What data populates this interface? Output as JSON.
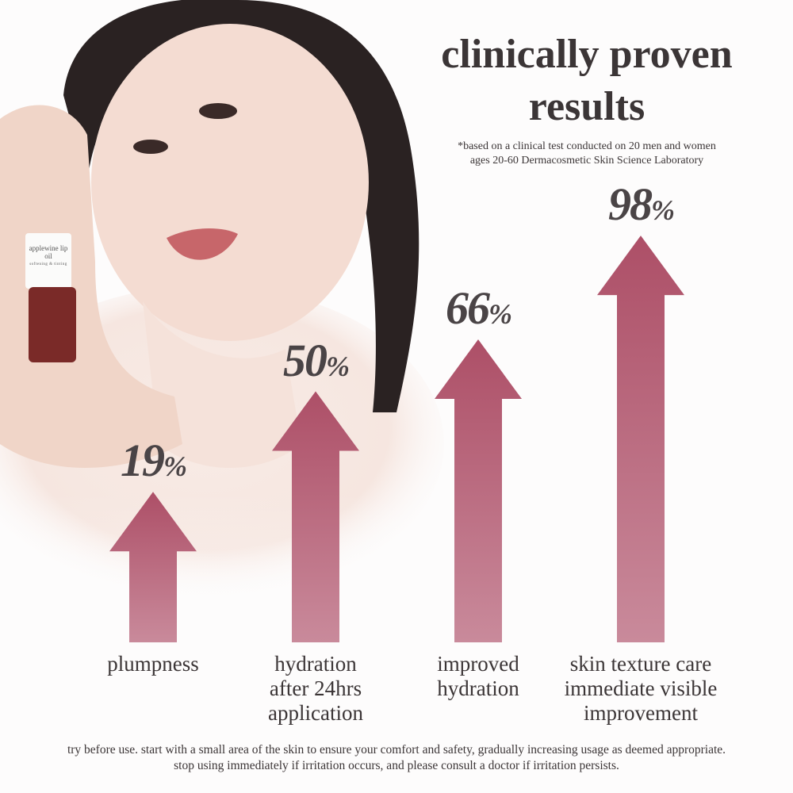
{
  "header": {
    "title_line1": "clinically proven",
    "title_line2": "results",
    "note_line1": "*based on a clinical test conducted on 20 men and women",
    "note_line2": "ages 20-60 Dermacosmetic Skin Science Laboratory"
  },
  "product_label": {
    "name": "applewine lip oil",
    "sub": "softening & tinting"
  },
  "chart_data": {
    "type": "bar",
    "style": "upward arrows",
    "categories": [
      "plumpness",
      "hydration\nafter 24hrs\napplication",
      "improved\nhydration",
      "skin texture care\nimmediate visible\nimprovement"
    ],
    "values": [
      19,
      50,
      66,
      98
    ],
    "value_labels": [
      "19",
      "50",
      "66",
      "98"
    ],
    "unit": "%",
    "colors": {
      "arrow_top": "#ad4f67",
      "arrow_bottom": "#c98a9b",
      "value_text": "#4a4446"
    }
  },
  "disclaimer": {
    "line1": "try before use. start with a small area of the skin to ensure your comfort and safety, gradually increasing usage as deemed appropriate.",
    "line2": "stop using immediately if irritation occurs, and please consult a doctor if irritation persists."
  }
}
